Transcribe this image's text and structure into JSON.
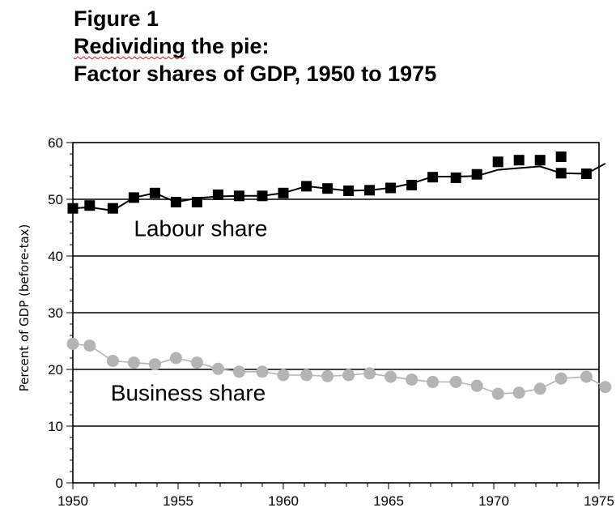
{
  "figure": {
    "number_label": "Figure 1",
    "title_word1": "Redividing",
    "title_rest": " the pie:",
    "subtitle": "Factor shares of GDP, 1950 to 1975"
  },
  "chart_data": {
    "type": "line",
    "ylabel": "Percent of GDP (before-tax)",
    "xlim": [
      1950,
      1975
    ],
    "ylim": [
      0,
      60
    ],
    "grid": "horizontal",
    "yticks": [
      0,
      10,
      20,
      30,
      40,
      50,
      60
    ],
    "xticks": [
      1950,
      1955,
      1960,
      1965,
      1970,
      1975
    ],
    "series": [
      {
        "name": "Labour share",
        "color": "#000000",
        "marker": "square",
        "points": [
          [
            1950.0,
            48.4
          ],
          [
            1950.8,
            48.9
          ],
          [
            1951.9,
            48.4
          ],
          [
            1952.9,
            50.3
          ],
          [
            1953.9,
            51.1
          ],
          [
            1954.9,
            49.5
          ],
          [
            1955.9,
            49.5
          ],
          [
            1956.9,
            50.8
          ],
          [
            1957.9,
            50.6
          ],
          [
            1959.0,
            50.6
          ],
          [
            1960.0,
            51.1
          ],
          [
            1961.1,
            52.3
          ],
          [
            1962.1,
            51.9
          ],
          [
            1963.1,
            51.5
          ],
          [
            1964.1,
            51.6
          ],
          [
            1965.1,
            52.0
          ],
          [
            1966.1,
            52.5
          ],
          [
            1967.1,
            53.9
          ],
          [
            1968.2,
            53.8
          ],
          [
            1969.2,
            54.4
          ],
          [
            1970.2,
            56.6
          ],
          [
            1971.2,
            56.9
          ],
          [
            1972.2,
            56.9
          ],
          [
            1973.2,
            57.5
          ],
          [
            1973.2,
            54.6
          ],
          [
            1974.4,
            54.5
          ]
        ],
        "line": [
          [
            1950.0,
            48.4
          ],
          [
            1950.8,
            48.6
          ],
          [
            1951.9,
            48.0
          ],
          [
            1952.9,
            50.3
          ],
          [
            1953.9,
            51.1
          ],
          [
            1954.9,
            49.5
          ],
          [
            1955.9,
            50.2
          ],
          [
            1956.9,
            50.5
          ],
          [
            1957.9,
            50.6
          ],
          [
            1959.0,
            50.6
          ],
          [
            1960.0,
            51.1
          ],
          [
            1961.1,
            52.3
          ],
          [
            1962.1,
            51.9
          ],
          [
            1963.1,
            51.5
          ],
          [
            1964.1,
            51.6
          ],
          [
            1965.1,
            52.0
          ],
          [
            1966.1,
            52.8
          ],
          [
            1967.1,
            54.0
          ],
          [
            1968.2,
            54.0
          ],
          [
            1969.2,
            54.1
          ],
          [
            1970.2,
            55.2
          ],
          [
            1971.2,
            55.5
          ],
          [
            1972.2,
            55.8
          ],
          [
            1973.2,
            54.6
          ],
          [
            1974.4,
            54.5
          ],
          [
            1975.3,
            56.3
          ]
        ]
      },
      {
        "name": "Business share",
        "color": "#b4b4b4",
        "marker": "circle",
        "points": [
          [
            1950.0,
            24.5
          ],
          [
            1950.8,
            24.2
          ],
          [
            1951.9,
            21.5
          ],
          [
            1952.9,
            21.2
          ],
          [
            1953.9,
            20.9
          ],
          [
            1954.9,
            22.0
          ],
          [
            1955.9,
            21.2
          ],
          [
            1956.9,
            20.1
          ],
          [
            1957.9,
            19.6
          ],
          [
            1959.0,
            19.6
          ],
          [
            1960.0,
            19.0
          ],
          [
            1961.1,
            19.0
          ],
          [
            1962.1,
            18.8
          ],
          [
            1963.1,
            19.0
          ],
          [
            1964.1,
            19.3
          ],
          [
            1965.1,
            18.7
          ],
          [
            1966.1,
            18.2
          ],
          [
            1967.1,
            17.8
          ],
          [
            1968.2,
            17.8
          ],
          [
            1969.2,
            17.1
          ],
          [
            1970.2,
            15.7
          ],
          [
            1971.2,
            15.9
          ],
          [
            1972.2,
            16.6
          ],
          [
            1973.2,
            18.4
          ],
          [
            1974.4,
            18.7
          ],
          [
            1975.3,
            16.9
          ]
        ]
      }
    ],
    "annotations": [
      {
        "text": "Labour share",
        "x": 1952.9,
        "y": 43.5
      },
      {
        "text": "Business share",
        "x": 1951.8,
        "y": 14.5
      }
    ]
  }
}
